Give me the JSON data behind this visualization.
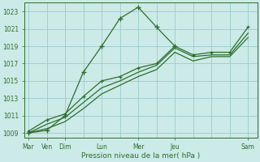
{
  "background_color": "#cceae7",
  "grid_color": "#99cccc",
  "line_color": "#2d6e2d",
  "marker_color": "#2d6e2d",
  "xlabel": "Pression niveau de la mer( hPa )",
  "ylim": [
    1008.5,
    1024.0
  ],
  "yticks": [
    1009,
    1011,
    1013,
    1015,
    1017,
    1019,
    1021,
    1023
  ],
  "xtick_positions": [
    0,
    1,
    2,
    4,
    6,
    8,
    12
  ],
  "xtick_labels": [
    "Mar",
    "Ven",
    "Dim",
    "Lun",
    "Mer",
    "Jeu",
    "Sam"
  ],
  "xmin": -0.2,
  "xmax": 12.5,
  "series1_x": [
    0,
    1,
    2,
    3,
    4,
    5,
    6,
    7,
    8
  ],
  "series1_y": [
    1009.0,
    1009.3,
    1011.0,
    1016.0,
    1019.0,
    1022.2,
    1023.5,
    1021.2,
    1019.0
  ],
  "series2_x": [
    0,
    1,
    2,
    3,
    4,
    5,
    6,
    7,
    8,
    9,
    10,
    11,
    12
  ],
  "series2_y": [
    1009.2,
    1010.5,
    1011.2,
    1013.2,
    1015.0,
    1015.5,
    1016.5,
    1017.0,
    1019.0,
    1018.0,
    1018.3,
    1018.3,
    1021.2
  ],
  "series3_x": [
    0,
    1,
    2,
    3,
    4,
    5,
    6,
    7,
    8,
    9,
    10,
    11,
    12
  ],
  "series3_y": [
    1009.0,
    1010.0,
    1010.8,
    1012.5,
    1014.2,
    1015.0,
    1016.0,
    1016.8,
    1018.8,
    1017.8,
    1018.0,
    1018.0,
    1020.5
  ],
  "series4_x": [
    0,
    1,
    2,
    3,
    4,
    5,
    6,
    7,
    8,
    9,
    10,
    11,
    12
  ],
  "series4_y": [
    1009.0,
    1009.5,
    1010.3,
    1011.8,
    1013.5,
    1014.5,
    1015.5,
    1016.3,
    1018.3,
    1017.3,
    1017.8,
    1017.8,
    1020.0
  ]
}
